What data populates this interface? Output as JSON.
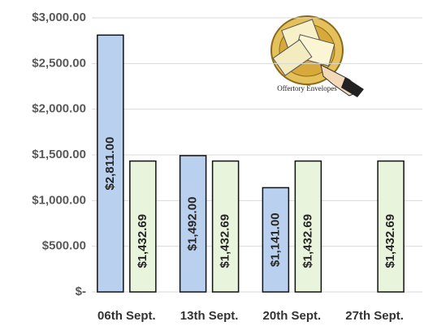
{
  "chart_data": {
    "type": "bar",
    "annotation": "Offertory Envelopes",
    "categories": [
      "06th Sept.",
      "13th Sept.",
      "20th Sept.",
      "27th Sept."
    ],
    "series": [
      {
        "color": "#b9d1ee",
        "values": [
          2811,
          1492,
          1141,
          null
        ],
        "value_labels": [
          "$2,811.00",
          "$1,492.00",
          "$1,141.00",
          null
        ]
      },
      {
        "color": "#e8f4db",
        "values": [
          1432.69,
          1432.69,
          1432.69,
          1432.69
        ],
        "value_labels": [
          "$1,432.69",
          "$1,432.69",
          "$1,432.69",
          "$1,432.69"
        ]
      }
    ],
    "ylim": [
      0,
      3000
    ],
    "yticks": [
      {
        "value": 0,
        "label": "$-"
      },
      {
        "value": 500,
        "label": "$500.00"
      },
      {
        "value": 1000,
        "label": "$1,000.00"
      },
      {
        "value": 1500,
        "label": "$1,500.00"
      },
      {
        "value": 2000,
        "label": "$2,000.00"
      },
      {
        "value": 2500,
        "label": "$2,500.00"
      },
      {
        "value": 3000,
        "label": "$3,000.00"
      }
    ],
    "grid": true
  }
}
